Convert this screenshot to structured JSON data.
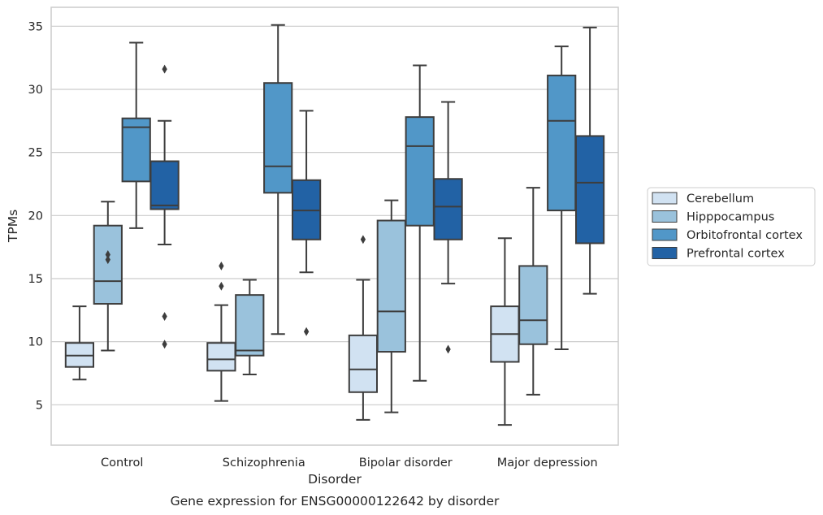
{
  "caption": "Gene expression for ENSG00000122642 by disorder",
  "chart_data": {
    "type": "box",
    "title": "",
    "xlabel": "Disorder",
    "ylabel": "TPMs",
    "ylim": [
      1.8,
      36.5
    ],
    "yticks": [
      5,
      10,
      15,
      20,
      25,
      30,
      35
    ],
    "grid": "horizontal",
    "legend_position": "right",
    "categories": [
      "Control",
      "Schizophrenia",
      "Bipolar disorder",
      "Major depression"
    ],
    "series": [
      {
        "name": "Cerebellum",
        "color": "#d1e2f2",
        "boxes": [
          {
            "whislo": 7.0,
            "q1": 8.0,
            "med": 8.9,
            "q3": 9.9,
            "whishi": 12.8,
            "fliers": []
          },
          {
            "whislo": 5.3,
            "q1": 7.7,
            "med": 8.6,
            "q3": 9.9,
            "whishi": 12.9,
            "fliers": [
              14.4,
              16.0
            ]
          },
          {
            "whislo": 3.8,
            "q1": 6.0,
            "med": 7.8,
            "q3": 10.5,
            "whishi": 14.9,
            "fliers": [
              18.1
            ]
          },
          {
            "whislo": 3.4,
            "q1": 8.4,
            "med": 10.6,
            "q3": 12.8,
            "whishi": 18.2,
            "fliers": []
          }
        ]
      },
      {
        "name": "Hipppocampus",
        "color": "#9ac2dc",
        "boxes": [
          {
            "whislo": 9.3,
            "q1": 13.0,
            "med": 14.8,
            "q3": 19.2,
            "whishi": 21.1,
            "fliers": [
              16.5,
              16.9
            ]
          },
          {
            "whislo": 7.4,
            "q1": 8.9,
            "med": 9.3,
            "q3": 13.7,
            "whishi": 14.9,
            "fliers": []
          },
          {
            "whislo": 4.4,
            "q1": 9.2,
            "med": 12.4,
            "q3": 19.6,
            "whishi": 21.2,
            "fliers": []
          },
          {
            "whislo": 5.8,
            "q1": 9.8,
            "med": 11.7,
            "q3": 16.0,
            "whishi": 22.2,
            "fliers": []
          }
        ]
      },
      {
        "name": "Orbitofrontal cortex",
        "color": "#5197c8",
        "boxes": [
          {
            "whislo": 19.0,
            "q1": 22.7,
            "med": 27.0,
            "q3": 27.7,
            "whishi": 33.7,
            "fliers": []
          },
          {
            "whislo": 10.6,
            "q1": 21.8,
            "med": 23.9,
            "q3": 30.5,
            "whishi": 35.1,
            "fliers": []
          },
          {
            "whislo": 6.9,
            "q1": 19.2,
            "med": 25.5,
            "q3": 27.8,
            "whishi": 31.9,
            "fliers": []
          },
          {
            "whislo": 9.4,
            "q1": 20.4,
            "med": 27.5,
            "q3": 31.1,
            "whishi": 33.4,
            "fliers": []
          }
        ]
      },
      {
        "name": "Prefrontal cortex",
        "color": "#2262a5",
        "boxes": [
          {
            "whislo": 17.7,
            "q1": 20.5,
            "med": 20.8,
            "q3": 24.3,
            "whishi": 27.5,
            "fliers": [
              9.8,
              12.0,
              31.6
            ]
          },
          {
            "whislo": 15.5,
            "q1": 18.1,
            "med": 20.4,
            "q3": 22.8,
            "whishi": 28.3,
            "fliers": [
              10.8
            ]
          },
          {
            "whislo": 14.6,
            "q1": 18.1,
            "med": 20.7,
            "q3": 22.9,
            "whishi": 29.0,
            "fliers": [
              9.4
            ]
          },
          {
            "whislo": 13.8,
            "q1": 17.8,
            "med": 22.6,
            "q3": 26.3,
            "whishi": 34.9,
            "fliers": []
          }
        ]
      }
    ]
  }
}
